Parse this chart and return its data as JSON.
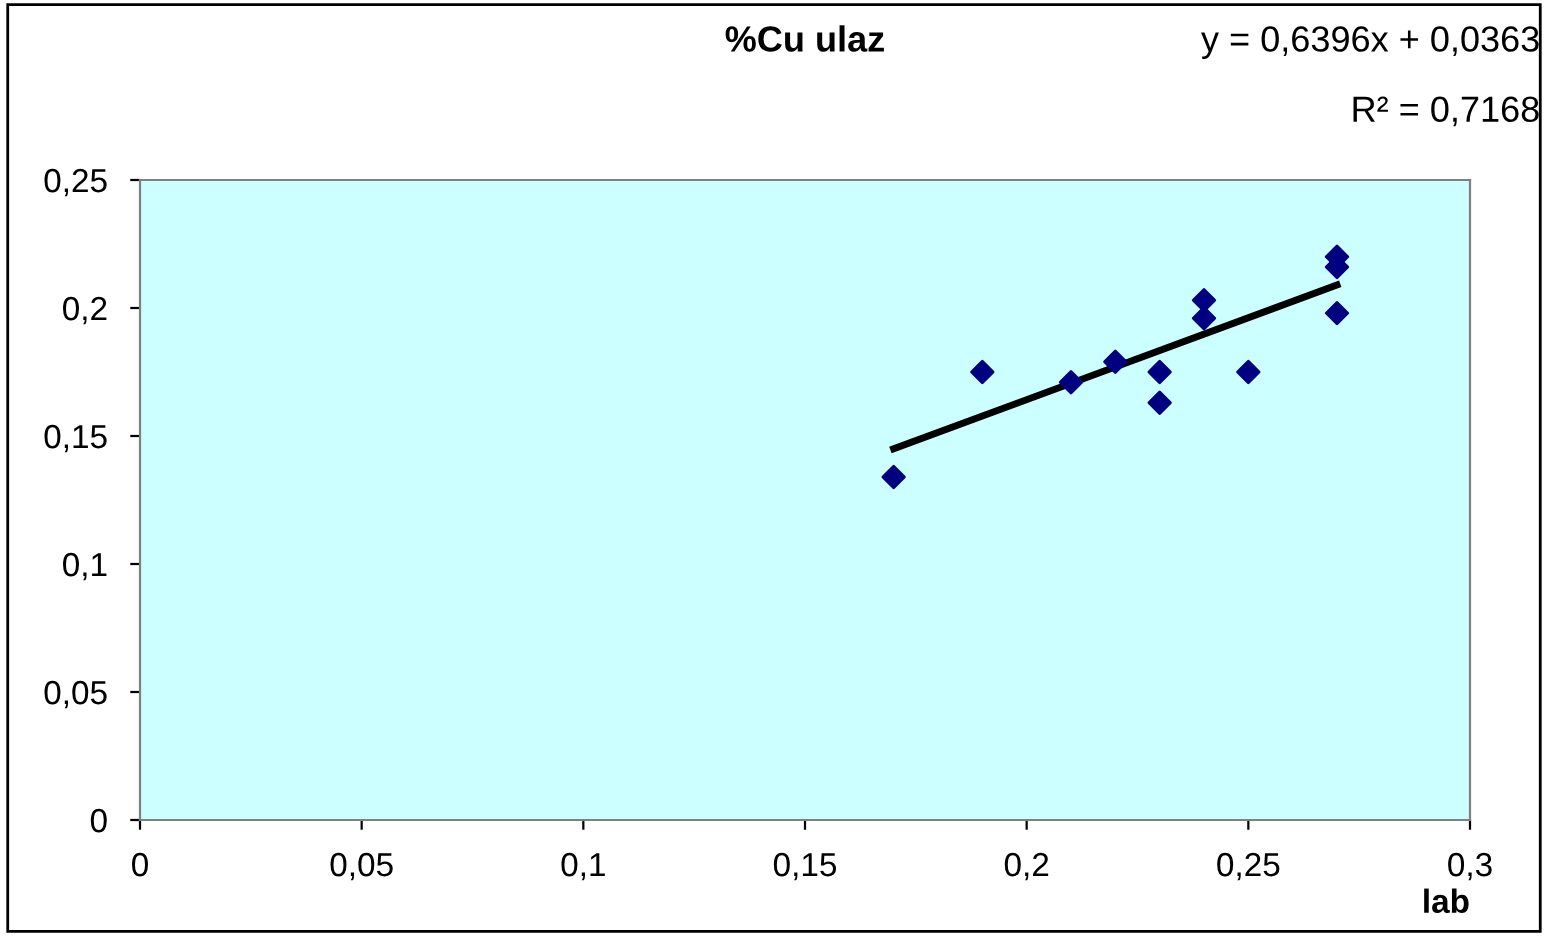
{
  "chart_data": {
    "type": "scatter",
    "title": "%Cu ulaz",
    "xlabel": "lab",
    "annotations": [
      "y = 0,6396x + 0,0363",
      "R² = 0,7168"
    ],
    "series": [
      {
        "color": "#000080",
        "marker": "diamond",
        "x": [
          0.17,
          0.19,
          0.21,
          0.22,
          0.23,
          0.23,
          0.24,
          0.24,
          0.25,
          0.27,
          0.27,
          0.27
        ],
        "values": [
          0.134,
          0.175,
          0.171,
          0.179,
          0.175,
          0.163,
          0.203,
          0.196,
          0.175,
          0.22,
          0.216,
          0.198
        ]
      },
      {
        "type": "line",
        "color": "#000000",
        "marker": "none",
        "x": [
          0.17,
          0.27
        ],
        "values": [
          0.145,
          0.209
        ]
      }
    ],
    "xlim": [
      0,
      0.3
    ],
    "ylim": [
      0,
      0.25
    ],
    "xticks": [
      0,
      {
        "value": 0.05,
        "label": "0,05"
      },
      {
        "value": 0.1,
        "label": "0,1"
      },
      {
        "value": 0.15,
        "label": "0,15"
      },
      {
        "value": 0.2,
        "label": "0,2"
      },
      {
        "value": 0.25,
        "label": "0,25"
      },
      {
        "value": 0.3,
        "label": "0,3"
      }
    ],
    "yticks": [
      0,
      {
        "value": 0.05,
        "label": "0,05"
      },
      {
        "value": 0.1,
        "label": "0,1"
      },
      {
        "value": 0.15,
        "label": "0,15"
      },
      {
        "value": 0.2,
        "label": "0,2"
      },
      {
        "value": 0.25,
        "label": "0,25"
      }
    ],
    "grid": false,
    "legend": false
  }
}
